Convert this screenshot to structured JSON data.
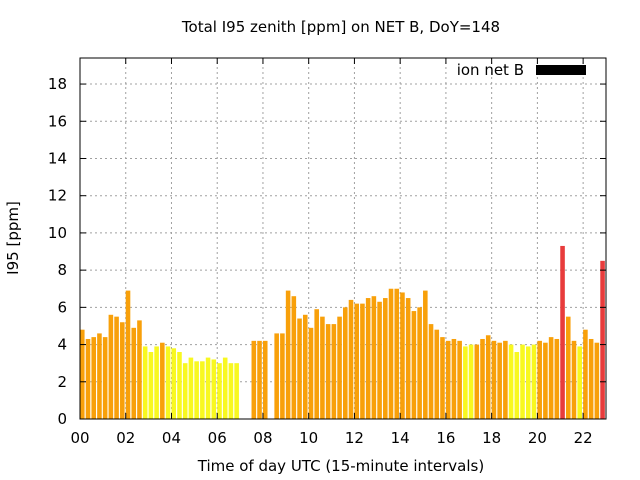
{
  "chart_data": {
    "type": "bar",
    "title": "Total I95 zenith [ppm] on NET B, DoY=148",
    "xlabel": "Time of day UTC (15-minute intervals)",
    "ylabel": "I95 [ppm]",
    "xlim": [
      0,
      23
    ],
    "ylim": [
      0,
      19.4
    ],
    "x_ticks": [
      0,
      2,
      4,
      6,
      8,
      10,
      12,
      14,
      16,
      18,
      20,
      22
    ],
    "x_tick_labels": [
      "00",
      "02",
      "04",
      "06",
      "08",
      "10",
      "12",
      "14",
      "16",
      "18",
      "20",
      "22"
    ],
    "y_ticks": [
      0,
      2,
      4,
      6,
      8,
      10,
      12,
      14,
      16,
      18
    ],
    "y_tick_labels": [
      "0",
      "2",
      "4",
      "6",
      "8",
      "10",
      "12",
      "14",
      "16",
      "18"
    ],
    "grid": true,
    "legend": {
      "label": "ion net B",
      "color": "#000000",
      "position": "top-right"
    },
    "colors": {
      "orange": "#f8a00a",
      "yellow": "#f8f820",
      "red": "#e83c3c"
    },
    "bar_width_hours": 0.2,
    "bars": [
      {
        "t": 0.0,
        "v": 4.8,
        "c": "orange"
      },
      {
        "t": 0.25,
        "v": 4.3,
        "c": "orange"
      },
      {
        "t": 0.5,
        "v": 4.4,
        "c": "orange"
      },
      {
        "t": 0.75,
        "v": 4.6,
        "c": "orange"
      },
      {
        "t": 1.0,
        "v": 4.4,
        "c": "orange"
      },
      {
        "t": 1.25,
        "v": 5.6,
        "c": "orange"
      },
      {
        "t": 1.5,
        "v": 5.5,
        "c": "orange"
      },
      {
        "t": 1.75,
        "v": 5.2,
        "c": "orange"
      },
      {
        "t": 2.0,
        "v": 6.9,
        "c": "orange"
      },
      {
        "t": 2.25,
        "v": 4.9,
        "c": "orange"
      },
      {
        "t": 2.5,
        "v": 5.3,
        "c": "orange"
      },
      {
        "t": 2.75,
        "v": 3.9,
        "c": "yellow"
      },
      {
        "t": 3.0,
        "v": 3.6,
        "c": "yellow"
      },
      {
        "t": 3.25,
        "v": 3.9,
        "c": "yellow"
      },
      {
        "t": 3.5,
        "v": 4.1,
        "c": "orange"
      },
      {
        "t": 3.75,
        "v": 3.9,
        "c": "yellow"
      },
      {
        "t": 4.0,
        "v": 3.8,
        "c": "yellow"
      },
      {
        "t": 4.25,
        "v": 3.6,
        "c": "yellow"
      },
      {
        "t": 4.5,
        "v": 3.0,
        "c": "yellow"
      },
      {
        "t": 4.75,
        "v": 3.3,
        "c": "yellow"
      },
      {
        "t": 5.0,
        "v": 3.1,
        "c": "yellow"
      },
      {
        "t": 5.25,
        "v": 3.1,
        "c": "yellow"
      },
      {
        "t": 5.5,
        "v": 3.3,
        "c": "yellow"
      },
      {
        "t": 5.75,
        "v": 3.2,
        "c": "yellow"
      },
      {
        "t": 6.0,
        "v": 3.0,
        "c": "yellow"
      },
      {
        "t": 6.25,
        "v": 3.3,
        "c": "yellow"
      },
      {
        "t": 6.5,
        "v": 3.0,
        "c": "yellow"
      },
      {
        "t": 6.75,
        "v": 3.0,
        "c": "yellow"
      },
      {
        "t": 7.5,
        "v": 4.2,
        "c": "orange"
      },
      {
        "t": 7.75,
        "v": 4.2,
        "c": "orange"
      },
      {
        "t": 8.0,
        "v": 4.2,
        "c": "orange"
      },
      {
        "t": 8.5,
        "v": 4.6,
        "c": "orange"
      },
      {
        "t": 8.75,
        "v": 4.6,
        "c": "orange"
      },
      {
        "t": 9.0,
        "v": 6.9,
        "c": "orange"
      },
      {
        "t": 9.25,
        "v": 6.6,
        "c": "orange"
      },
      {
        "t": 9.5,
        "v": 5.4,
        "c": "orange"
      },
      {
        "t": 9.75,
        "v": 5.6,
        "c": "orange"
      },
      {
        "t": 10.0,
        "v": 4.9,
        "c": "orange"
      },
      {
        "t": 10.25,
        "v": 5.9,
        "c": "orange"
      },
      {
        "t": 10.5,
        "v": 5.5,
        "c": "orange"
      },
      {
        "t": 10.75,
        "v": 5.1,
        "c": "orange"
      },
      {
        "t": 11.0,
        "v": 5.1,
        "c": "orange"
      },
      {
        "t": 11.25,
        "v": 5.5,
        "c": "orange"
      },
      {
        "t": 11.5,
        "v": 6.0,
        "c": "orange"
      },
      {
        "t": 11.75,
        "v": 6.4,
        "c": "orange"
      },
      {
        "t": 12.0,
        "v": 6.2,
        "c": "orange"
      },
      {
        "t": 12.25,
        "v": 6.2,
        "c": "orange"
      },
      {
        "t": 12.5,
        "v": 6.5,
        "c": "orange"
      },
      {
        "t": 12.75,
        "v": 6.6,
        "c": "orange"
      },
      {
        "t": 13.0,
        "v": 6.3,
        "c": "orange"
      },
      {
        "t": 13.25,
        "v": 6.5,
        "c": "orange"
      },
      {
        "t": 13.5,
        "v": 7.0,
        "c": "orange"
      },
      {
        "t": 13.75,
        "v": 7.0,
        "c": "orange"
      },
      {
        "t": 14.0,
        "v": 6.8,
        "c": "orange"
      },
      {
        "t": 14.25,
        "v": 6.5,
        "c": "orange"
      },
      {
        "t": 14.5,
        "v": 5.8,
        "c": "orange"
      },
      {
        "t": 14.75,
        "v": 6.0,
        "c": "orange"
      },
      {
        "t": 15.0,
        "v": 6.9,
        "c": "orange"
      },
      {
        "t": 15.25,
        "v": 5.1,
        "c": "orange"
      },
      {
        "t": 15.5,
        "v": 4.8,
        "c": "orange"
      },
      {
        "t": 15.75,
        "v": 4.4,
        "c": "orange"
      },
      {
        "t": 16.0,
        "v": 4.2,
        "c": "orange"
      },
      {
        "t": 16.25,
        "v": 4.3,
        "c": "orange"
      },
      {
        "t": 16.5,
        "v": 4.2,
        "c": "orange"
      },
      {
        "t": 16.75,
        "v": 3.9,
        "c": "yellow"
      },
      {
        "t": 17.0,
        "v": 4.0,
        "c": "yellow"
      },
      {
        "t": 17.25,
        "v": 4.0,
        "c": "orange"
      },
      {
        "t": 17.5,
        "v": 4.3,
        "c": "orange"
      },
      {
        "t": 17.75,
        "v": 4.5,
        "c": "orange"
      },
      {
        "t": 18.0,
        "v": 4.2,
        "c": "orange"
      },
      {
        "t": 18.25,
        "v": 4.1,
        "c": "orange"
      },
      {
        "t": 18.5,
        "v": 4.2,
        "c": "orange"
      },
      {
        "t": 18.75,
        "v": 4.0,
        "c": "yellow"
      },
      {
        "t": 19.0,
        "v": 3.6,
        "c": "yellow"
      },
      {
        "t": 19.25,
        "v": 4.0,
        "c": "yellow"
      },
      {
        "t": 19.5,
        "v": 3.9,
        "c": "yellow"
      },
      {
        "t": 19.75,
        "v": 4.0,
        "c": "yellow"
      },
      {
        "t": 20.0,
        "v": 4.2,
        "c": "orange"
      },
      {
        "t": 20.25,
        "v": 4.1,
        "c": "orange"
      },
      {
        "t": 20.5,
        "v": 4.4,
        "c": "orange"
      },
      {
        "t": 20.75,
        "v": 4.3,
        "c": "orange"
      },
      {
        "t": 21.0,
        "v": 9.3,
        "c": "red"
      },
      {
        "t": 21.25,
        "v": 5.5,
        "c": "orange"
      },
      {
        "t": 21.5,
        "v": 4.2,
        "c": "orange"
      },
      {
        "t": 21.75,
        "v": 3.9,
        "c": "yellow"
      },
      {
        "t": 22.0,
        "v": 4.8,
        "c": "orange"
      },
      {
        "t": 22.25,
        "v": 4.3,
        "c": "orange"
      },
      {
        "t": 22.5,
        "v": 4.1,
        "c": "orange"
      },
      {
        "t": 22.75,
        "v": 8.5,
        "c": "red"
      }
    ]
  }
}
